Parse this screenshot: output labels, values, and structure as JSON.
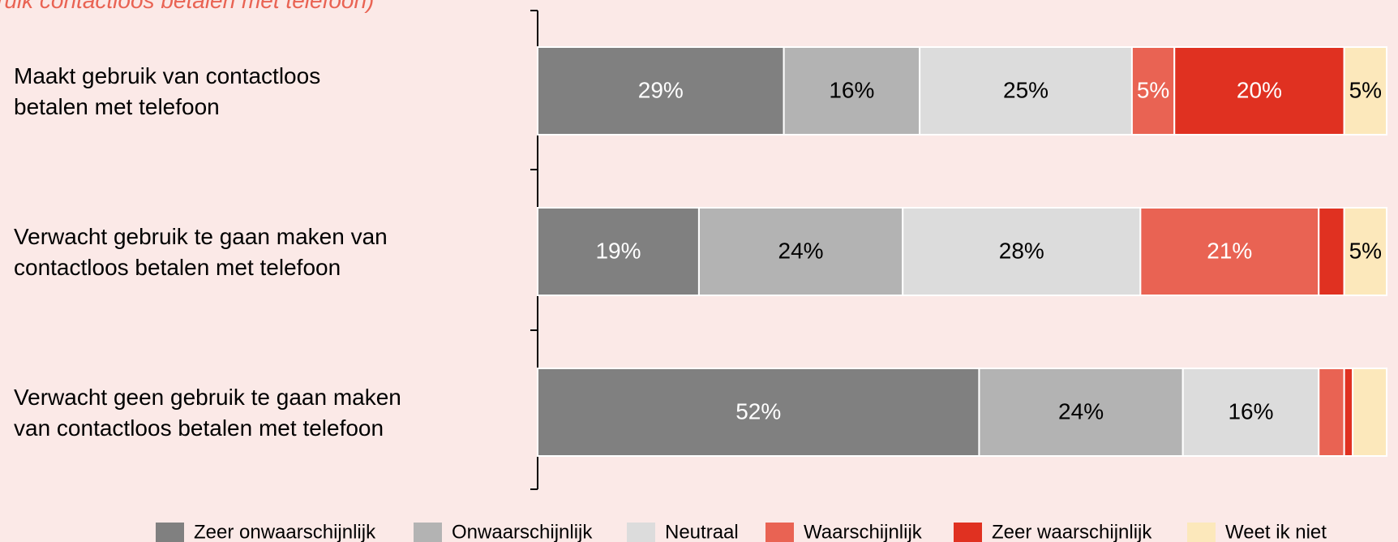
{
  "chart_data": {
    "type": "stacked_barh",
    "subtitle": "ruik contactloos betalen met telefoon)",
    "categories": [
      "Maakt gebruik van contactloos\nbetalen met telefoon",
      "Verwacht gebruik te gaan maken van\ncontactloos betalen met telefoon",
      "Verwacht geen gebruik te gaan maken\nvan contactloos betalen met telefoon"
    ],
    "xlim": [
      0,
      100
    ],
    "series": [
      {
        "name": "Zeer onwaarschijnlijk",
        "color": "#808080",
        "values": [
          29,
          19,
          52
        ],
        "value_labels": [
          "29%",
          "19%",
          "52%"
        ]
      },
      {
        "name": "Onwaarschijnlijk",
        "color": "#b3b3b3",
        "values": [
          16,
          24,
          24
        ],
        "value_labels": [
          "16%",
          "24%",
          "24%"
        ]
      },
      {
        "name": "Neutraal",
        "color": "#dcdcdc",
        "values": [
          25,
          28,
          16
        ],
        "value_labels": [
          "25%",
          "28%",
          "16%"
        ]
      },
      {
        "name": "Waarschijnlijk",
        "color": "#e96353",
        "values": [
          5,
          21,
          3
        ],
        "value_labels": [
          "5%",
          "21%",
          null
        ]
      },
      {
        "name": "Zeer waarschijnlijk",
        "color": "#e03121",
        "values": [
          20,
          3,
          1
        ],
        "value_labels": [
          "20%",
          null,
          null
        ]
      },
      {
        "name": "Weet ik niet",
        "color": "#fce8bb",
        "values": [
          5,
          5,
          4
        ],
        "value_labels": [
          "5%",
          "5%",
          null
        ]
      }
    ],
    "legend": "bottom"
  }
}
